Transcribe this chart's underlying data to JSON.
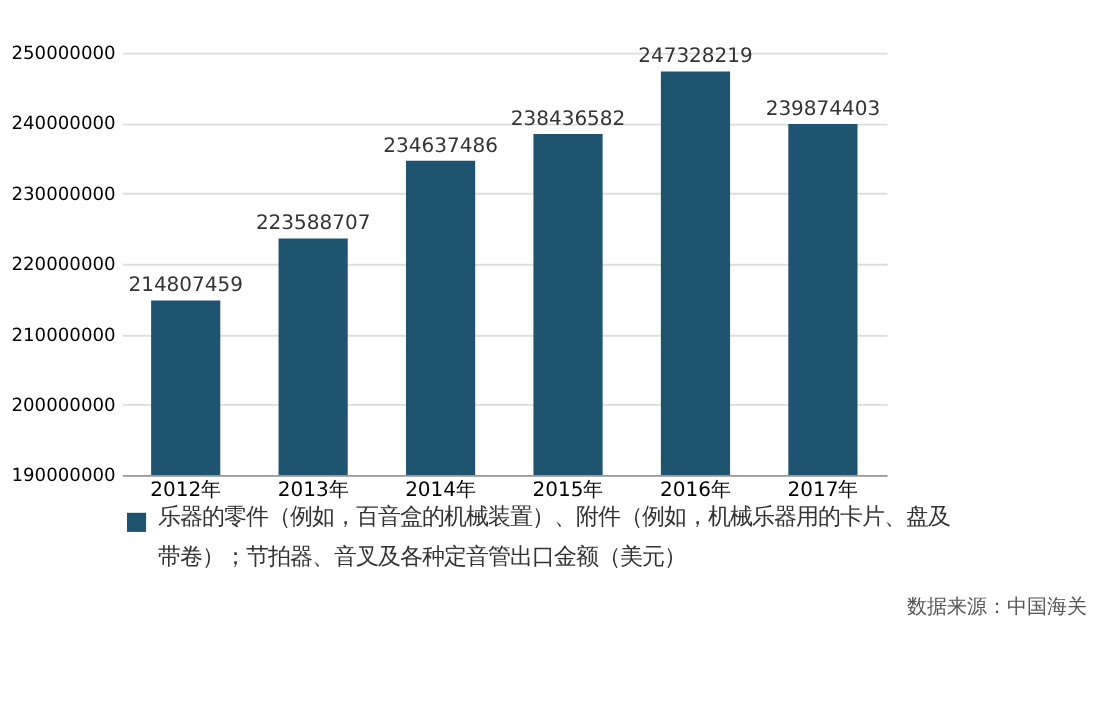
{
  "chart_data": {
    "type": "bar",
    "categories": [
      "2012年",
      "2013年",
      "2014年",
      "2015年",
      "2016年",
      "2017年"
    ],
    "series": [
      {
        "name": "乐器的零件（例如，百音盒的机械装置）、附件（例如，机械乐器用的卡片、盘及带卷）；节拍器、音叉及各种定音管出口金额（美元）",
        "color": "#1f5470",
        "values": [
          214807459,
          223588707,
          234637486,
          238436582,
          247328219,
          239874403
        ]
      }
    ],
    "ylim": [
      190000000,
      250000000
    ],
    "yticks": [
      190000000,
      200000000,
      210000000,
      220000000,
      230000000,
      240000000,
      250000000
    ],
    "grid": "y",
    "data_labels": true,
    "legend": "bottom",
    "annotations": [
      "数据来源：中国海关"
    ]
  }
}
